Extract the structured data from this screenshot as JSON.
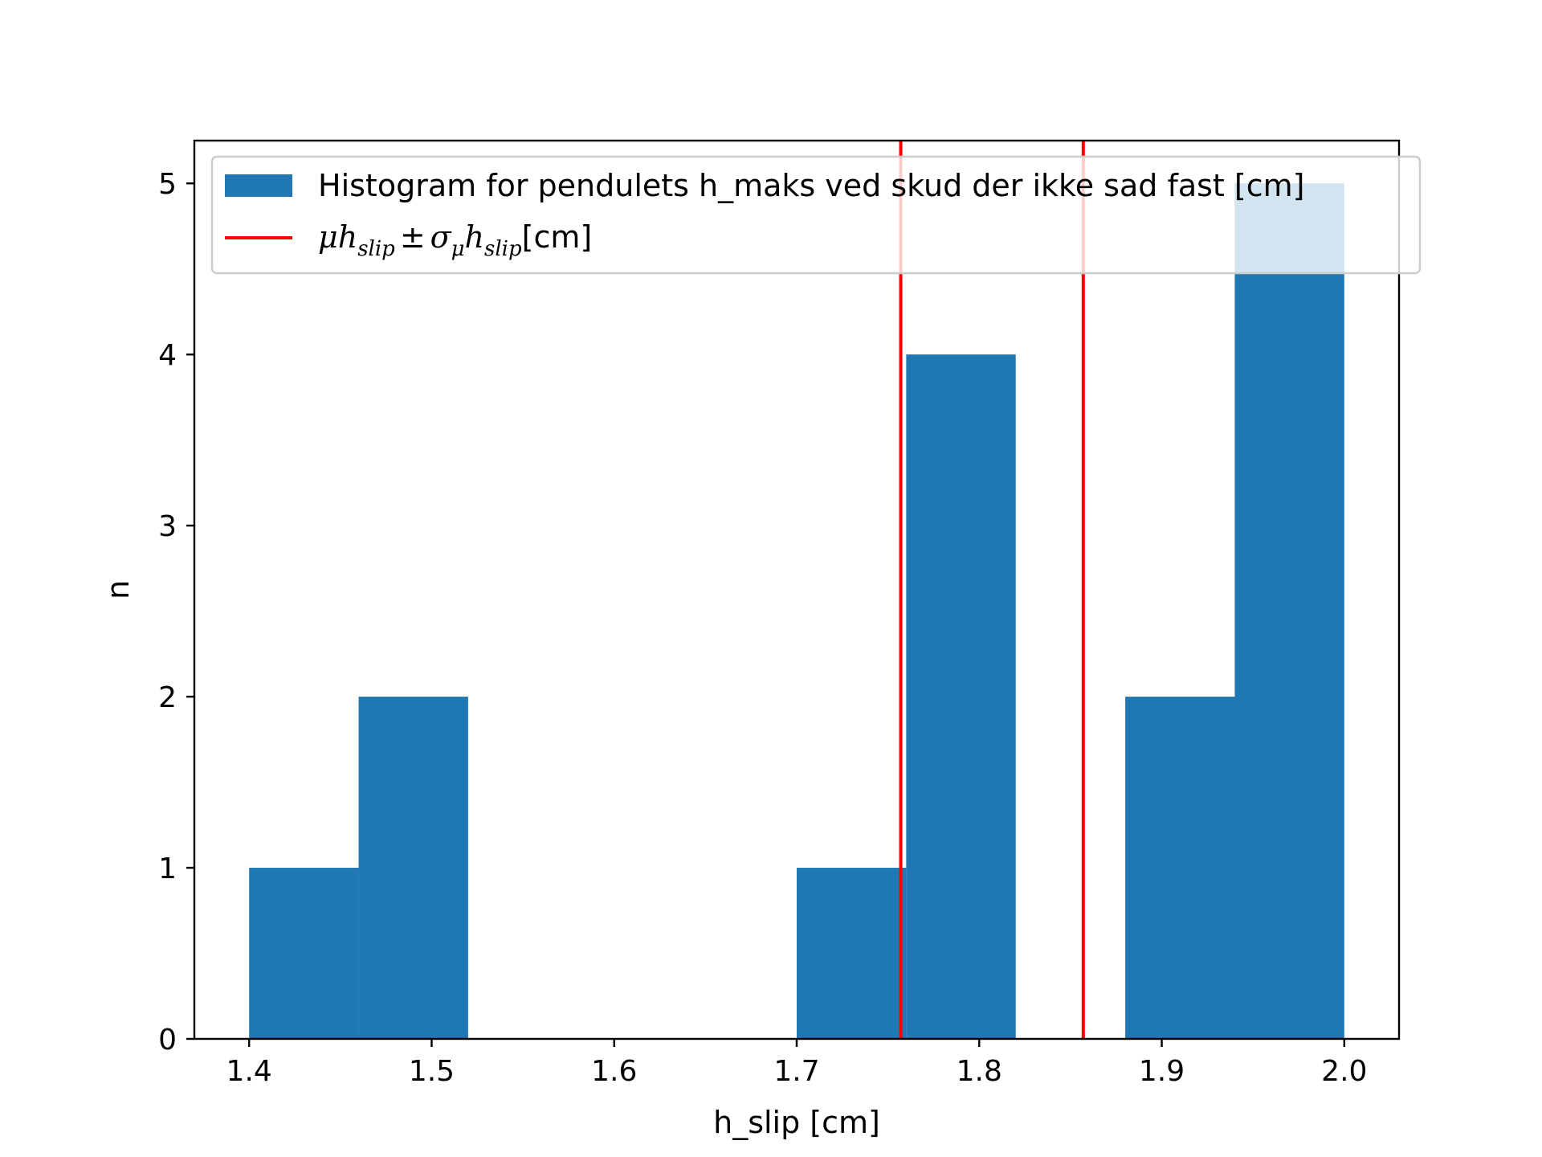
{
  "chart_data": {
    "type": "bar",
    "subtype": "histogram",
    "xlabel": "h_slip [cm]",
    "ylabel": "n",
    "xlim": [
      1.37,
      2.03
    ],
    "ylim": [
      0,
      5.25
    ],
    "xticks": [
      "1.4",
      "1.5",
      "1.6",
      "1.7",
      "1.8",
      "1.9",
      "2.0"
    ],
    "yticks": [
      "0",
      "1",
      "2",
      "3",
      "4",
      "5"
    ],
    "grid": false,
    "legend_position": "top-right",
    "bins": [
      {
        "x0": 1.4,
        "x1": 1.46,
        "count": 1
      },
      {
        "x0": 1.46,
        "x1": 1.52,
        "count": 2
      },
      {
        "x0": 1.52,
        "x1": 1.58,
        "count": 0
      },
      {
        "x0": 1.58,
        "x1": 1.64,
        "count": 0
      },
      {
        "x0": 1.64,
        "x1": 1.7,
        "count": 0
      },
      {
        "x0": 1.7,
        "x1": 1.76,
        "count": 1
      },
      {
        "x0": 1.76,
        "x1": 1.82,
        "count": 4
      },
      {
        "x0": 1.82,
        "x1": 1.88,
        "count": 0
      },
      {
        "x0": 1.88,
        "x1": 1.94,
        "count": 2
      },
      {
        "x0": 1.94,
        "x1": 2.0,
        "count": 5
      }
    ],
    "vlines": [
      1.757,
      1.857
    ],
    "series": [
      {
        "name": "Histogram for pendulets h_maks ved skud der ikke sad fast [cm]",
        "kind": "hist",
        "color": "#1f77b4"
      },
      {
        "name": "μh_slip ± σ_μ h_slip [cm]",
        "kind": "vline",
        "color": "#ff0000"
      }
    ],
    "legend": {
      "hist_label": "Histogram for pendulets h_maks ved skud der ikke sad fast [cm]",
      "line_label": {
        "mu": "μ",
        "h": "h",
        "sub": "slip",
        "pm": "±",
        "sigma": "σ",
        "sigma_sub": "μ",
        "unit": "[cm]"
      }
    }
  }
}
